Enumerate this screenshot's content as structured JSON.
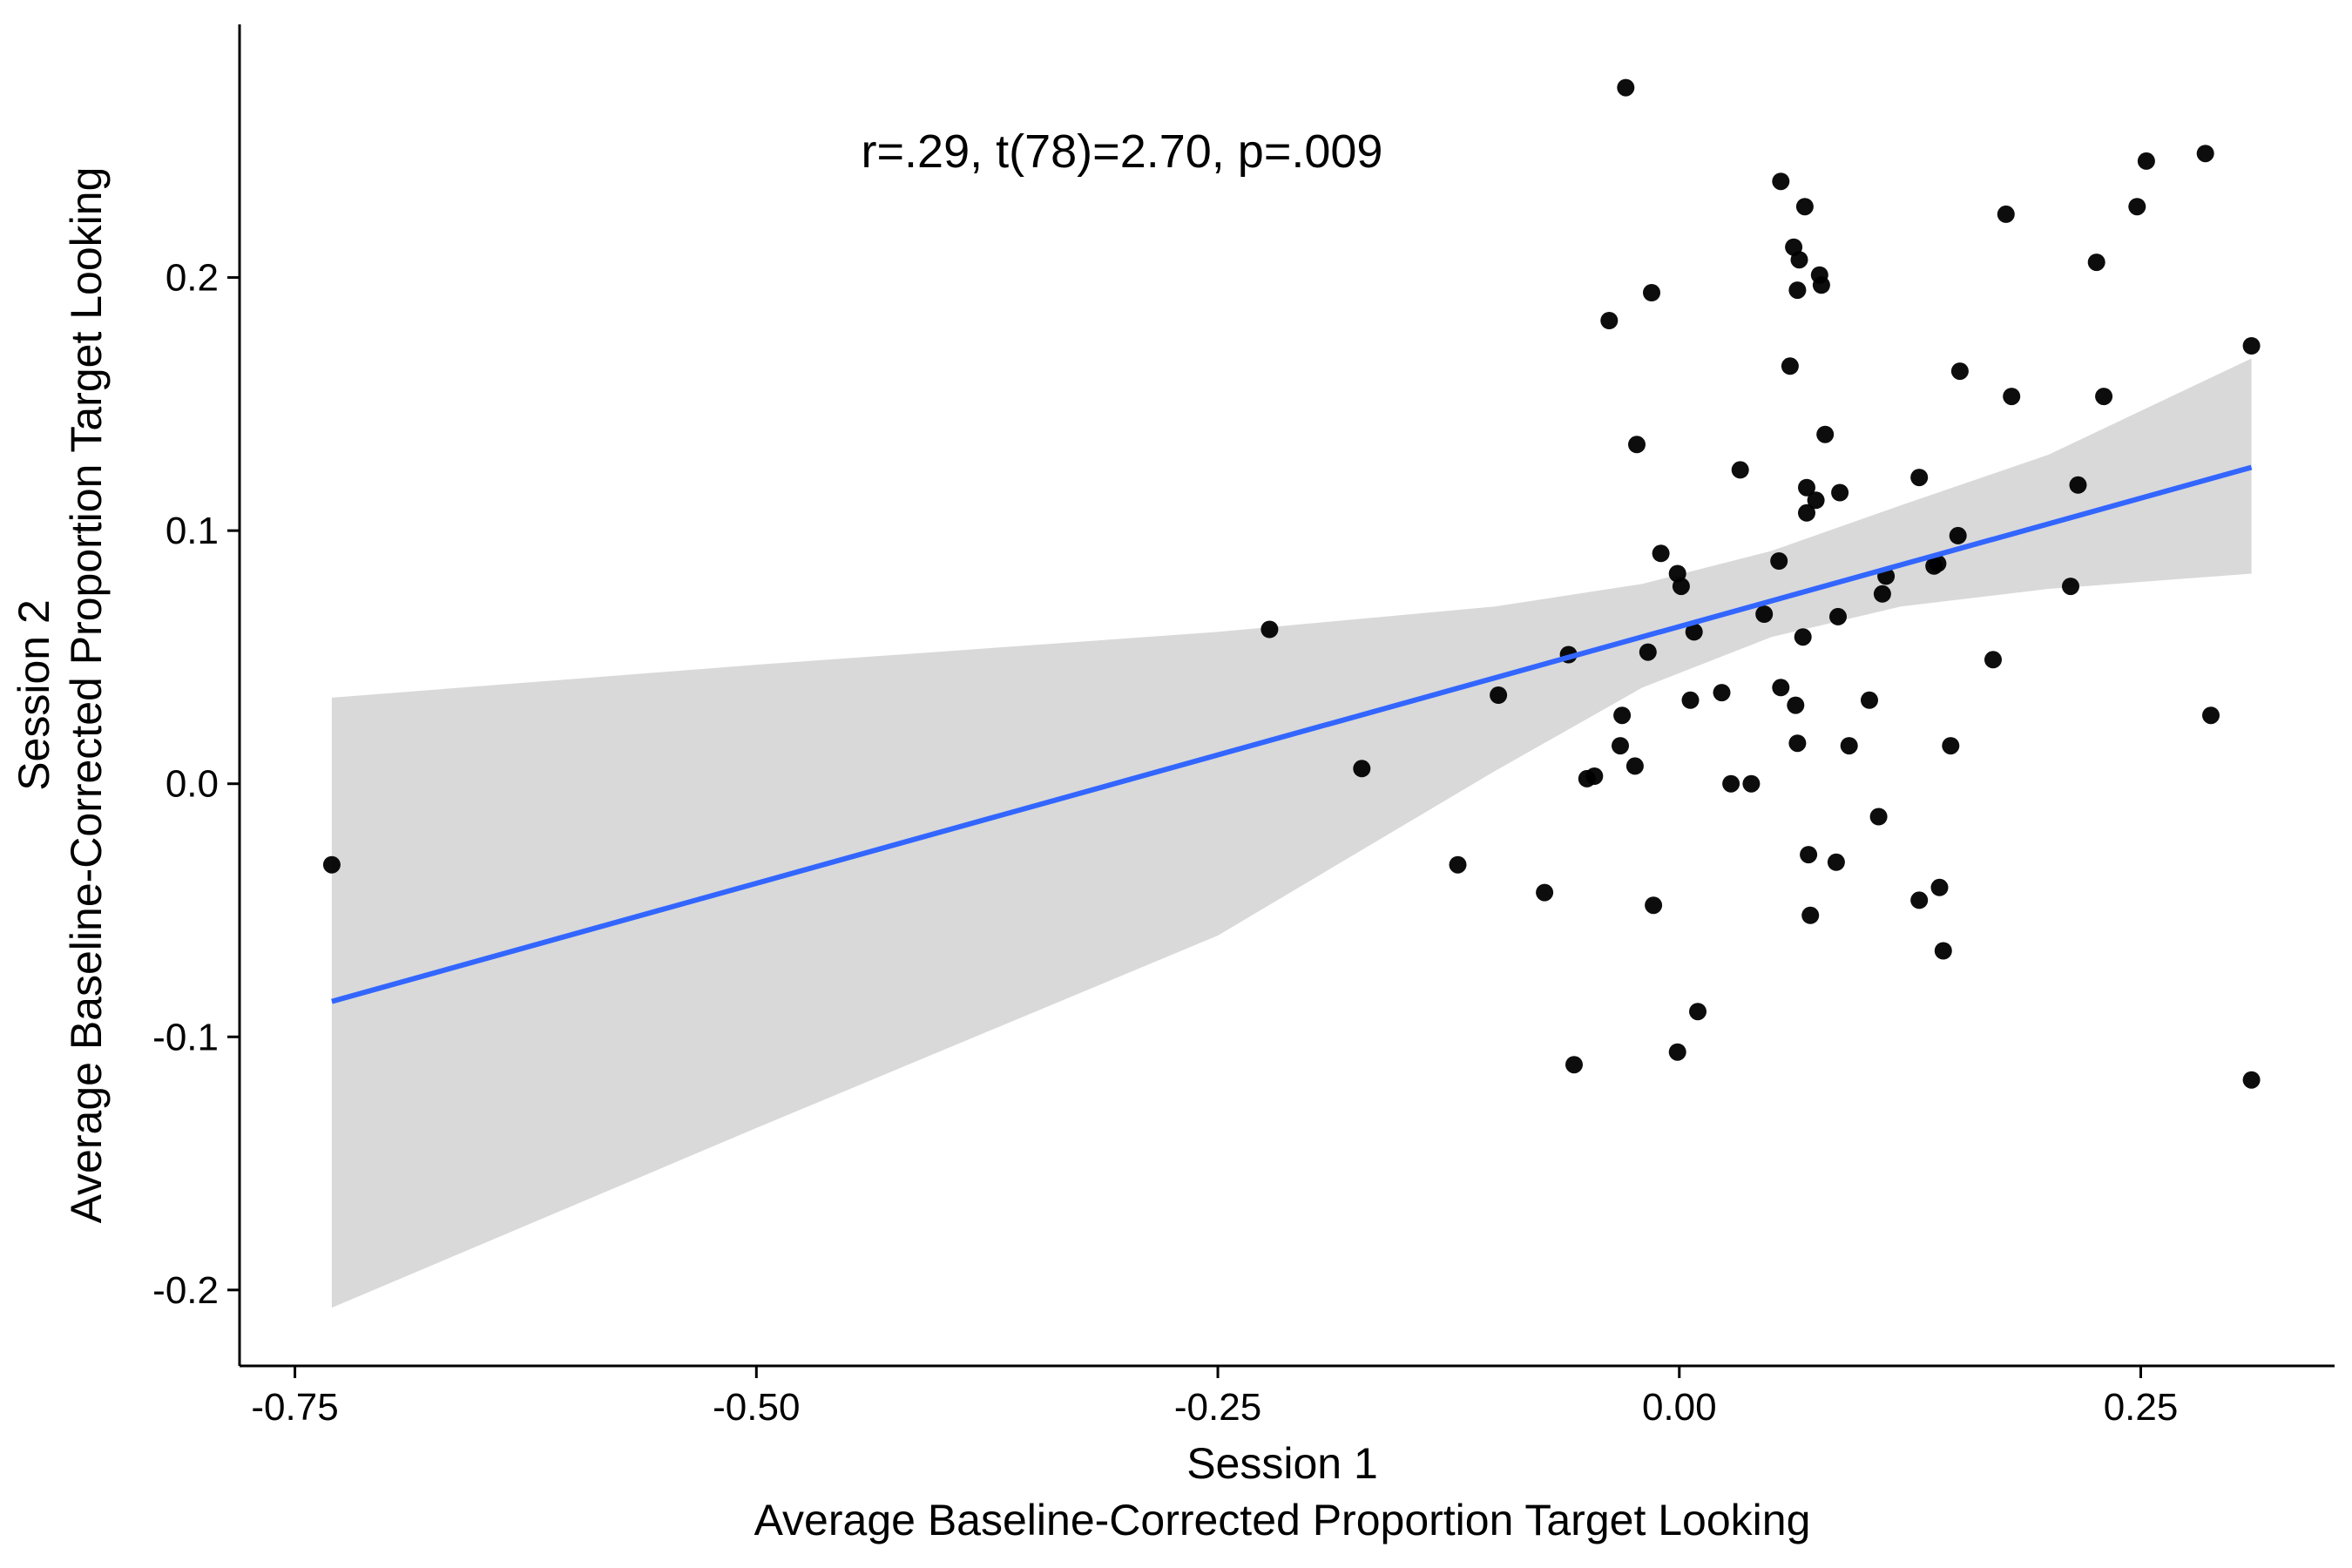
{
  "chart_data": {
    "type": "scatter",
    "xlabel": [
      "Session 1",
      "Average Baseline-Corrected Proportion Target Looking"
    ],
    "ylabel": [
      "Session 2",
      "Average Baseline-Corrected Proportion Target Looking"
    ],
    "annotation": "r=.29, t(78)=2.70, p=.009",
    "xlim": [
      -0.78,
      0.355
    ],
    "ylim": [
      -0.23,
      0.3
    ],
    "xticks": [
      -0.75,
      -0.5,
      -0.25,
      0.0,
      0.25
    ],
    "xtick_labels": [
      "-0.75",
      "-0.50",
      "-0.25",
      "0.00",
      "0.25"
    ],
    "yticks": [
      -0.2,
      -0.1,
      0.0,
      0.1,
      0.2
    ],
    "ytick_labels": [
      "-0.2",
      "-0.1",
      "0.0",
      "0.1",
      "0.2"
    ],
    "grid": false,
    "colors": {
      "points": "#000000",
      "fit_line": "#3366FF",
      "confidence_band": "#D9D9D9"
    },
    "fit": {
      "method": "linear",
      "x_range": [
        -0.73,
        0.31
      ],
      "line": [
        [
          -0.73,
          -0.086
        ],
        [
          0.31,
          0.125
        ]
      ],
      "ci_upper": [
        [
          -0.73,
          0.034
        ],
        [
          -0.5,
          0.047
        ],
        [
          -0.25,
          0.06
        ],
        [
          -0.1,
          0.07
        ],
        [
          -0.02,
          0.079
        ],
        [
          0.05,
          0.092
        ],
        [
          0.12,
          0.11
        ],
        [
          0.2,
          0.13
        ],
        [
          0.31,
          0.168
        ]
      ],
      "ci_lower": [
        [
          -0.73,
          -0.207
        ],
        [
          -0.5,
          -0.136
        ],
        [
          -0.25,
          -0.06
        ],
        [
          -0.1,
          0.005
        ],
        [
          -0.02,
          0.038
        ],
        [
          0.05,
          0.058
        ],
        [
          0.12,
          0.07
        ],
        [
          0.2,
          0.077
        ],
        [
          0.31,
          0.083
        ]
      ]
    },
    "points": [
      [
        -0.73,
        -0.032
      ],
      [
        -0.222,
        0.061
      ],
      [
        -0.172,
        0.006
      ],
      [
        -0.12,
        -0.032
      ],
      [
        -0.098,
        0.035
      ],
      [
        -0.073,
        -0.043
      ],
      [
        -0.06,
        0.051
      ],
      [
        -0.057,
        -0.111
      ],
      [
        -0.05,
        0.002
      ],
      [
        -0.046,
        0.003
      ],
      [
        -0.038,
        0.183
      ],
      [
        -0.032,
        0.015
      ],
      [
        -0.031,
        0.027
      ],
      [
        -0.029,
        0.275
      ],
      [
        -0.024,
        0.007
      ],
      [
        -0.023,
        0.134
      ],
      [
        -0.017,
        0.052
      ],
      [
        -0.015,
        0.194
      ],
      [
        -0.014,
        -0.048
      ],
      [
        -0.01,
        0.091
      ],
      [
        -0.001,
        0.083
      ],
      [
        -0.001,
        -0.106
      ],
      [
        0.001,
        0.078
      ],
      [
        0.006,
        0.033
      ],
      [
        0.008,
        0.06
      ],
      [
        0.01,
        -0.09
      ],
      [
        0.023,
        0.036
      ],
      [
        0.028,
        0.0
      ],
      [
        0.033,
        0.124
      ],
      [
        0.039,
        0.0
      ],
      [
        0.046,
        0.067
      ],
      [
        0.054,
        0.088
      ],
      [
        0.055,
        0.038
      ],
      [
        0.055,
        0.238
      ],
      [
        0.06,
        0.165
      ],
      [
        0.062,
        0.212
      ],
      [
        0.063,
        0.031
      ],
      [
        0.064,
        0.195
      ],
      [
        0.064,
        0.016
      ],
      [
        0.065,
        0.207
      ],
      [
        0.067,
        0.058
      ],
      [
        0.068,
        0.228
      ],
      [
        0.069,
        0.107
      ],
      [
        0.069,
        0.117
      ],
      [
        0.07,
        -0.028
      ],
      [
        0.071,
        -0.052
      ],
      [
        0.074,
        0.112
      ],
      [
        0.076,
        0.201
      ],
      [
        0.077,
        0.197
      ],
      [
        0.079,
        0.138
      ],
      [
        0.085,
        -0.031
      ],
      [
        0.086,
        0.066
      ],
      [
        0.087,
        0.115
      ],
      [
        0.092,
        0.015
      ],
      [
        0.103,
        0.033
      ],
      [
        0.108,
        -0.013
      ],
      [
        0.11,
        0.075
      ],
      [
        0.112,
        0.082
      ],
      [
        0.13,
        0.121
      ],
      [
        0.13,
        -0.046
      ],
      [
        0.138,
        0.086
      ],
      [
        0.14,
        0.087
      ],
      [
        0.141,
        -0.041
      ],
      [
        0.143,
        -0.066
      ],
      [
        0.147,
        0.015
      ],
      [
        0.151,
        0.098
      ],
      [
        0.152,
        0.163
      ],
      [
        0.17,
        0.049
      ],
      [
        0.177,
        0.225
      ],
      [
        0.18,
        0.153
      ],
      [
        0.212,
        0.078
      ],
      [
        0.216,
        0.118
      ],
      [
        0.226,
        0.206
      ],
      [
        0.23,
        0.153
      ],
      [
        0.248,
        0.228
      ],
      [
        0.253,
        0.246
      ],
      [
        0.285,
        0.249
      ],
      [
        0.288,
        0.027
      ],
      [
        0.31,
        0.173
      ],
      [
        0.31,
        -0.117
      ]
    ]
  }
}
